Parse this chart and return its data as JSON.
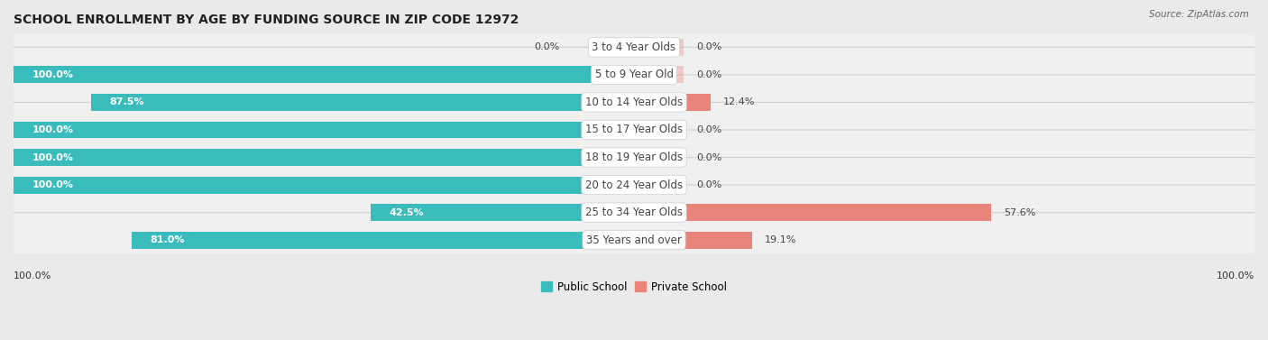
{
  "title": "SCHOOL ENROLLMENT BY AGE BY FUNDING SOURCE IN ZIP CODE 12972",
  "source": "Source: ZipAtlas.com",
  "categories": [
    "3 to 4 Year Olds",
    "5 to 9 Year Old",
    "10 to 14 Year Olds",
    "15 to 17 Year Olds",
    "18 to 19 Year Olds",
    "20 to 24 Year Olds",
    "25 to 34 Year Olds",
    "35 Years and over"
  ],
  "public_values": [
    0.0,
    100.0,
    87.5,
    100.0,
    100.0,
    100.0,
    42.5,
    81.0
  ],
  "private_values": [
    0.0,
    0.0,
    12.4,
    0.0,
    0.0,
    0.0,
    57.6,
    19.1
  ],
  "public_color": "#3BBCBC",
  "private_color": "#E8857A",
  "private_color_light": "#F0AEA8",
  "public_label": "Public School",
  "private_label": "Private School",
  "bg_color": "#eaeaea",
  "row_bg_color": "#f0f0f0",
  "row_border_color": "#d0d0d0",
  "label_white": "#ffffff",
  "label_dark": "#444444",
  "bar_height": 0.62,
  "axis_label_left": "100.0%",
  "axis_label_right": "100.0%",
  "xlim": 100
}
